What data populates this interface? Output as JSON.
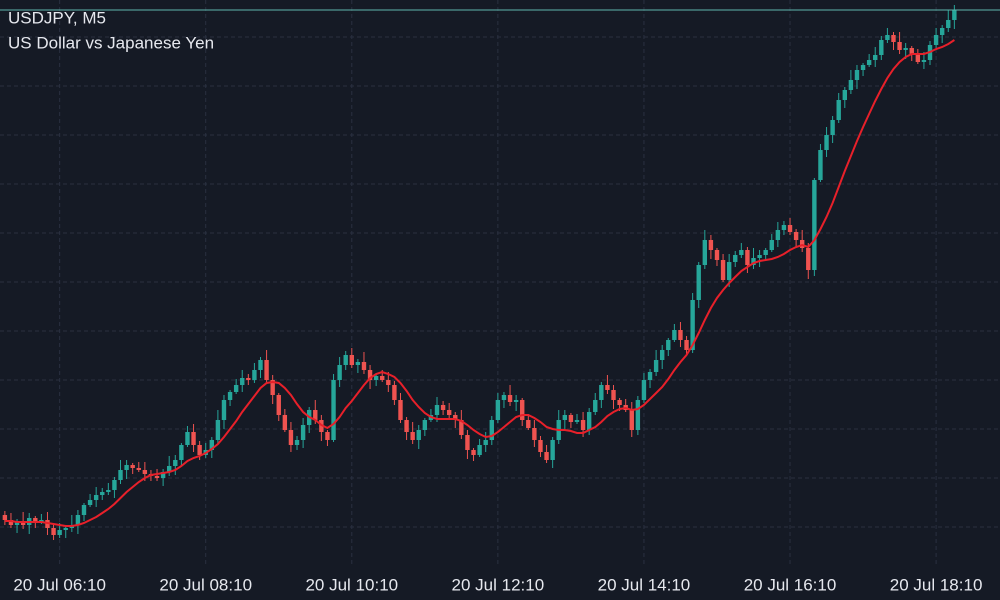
{
  "chart_data": {
    "type": "candlestick",
    "title": "USDJPY, M5",
    "subtitle": "US Dollar vs Japanese Yen",
    "up_color": "#26a69a",
    "down_color": "#ef5350",
    "ylim": [
      0,
      565
    ],
    "xlim": [
      -0.8,
      163.5
    ],
    "xticks": [
      {
        "value": 9,
        "label": "20 Jul 06:10"
      },
      {
        "value": 33,
        "label": "20 Jul 08:10"
      },
      {
        "value": 57,
        "label": "20 Jul 10:10"
      },
      {
        "value": 81,
        "label": "20 Jul 12:10"
      },
      {
        "value": 105,
        "label": "20 Jul 14:10"
      },
      {
        "value": 129,
        "label": "20 Jul 16:10"
      },
      {
        "value": 153,
        "label": "20 Jul 18:10"
      }
    ],
    "candles": [
      [
        50,
        54,
        40,
        45
      ],
      [
        45,
        52,
        37,
        40
      ],
      [
        40,
        46,
        32,
        43
      ],
      [
        43,
        53,
        36,
        40
      ],
      [
        40,
        52,
        31,
        47
      ],
      [
        47,
        49,
        37,
        43
      ],
      [
        43,
        51,
        41,
        45
      ],
      [
        45,
        53,
        30,
        37
      ],
      [
        37,
        41,
        25,
        30
      ],
      [
        30,
        42,
        27,
        35
      ],
      [
        35,
        40,
        27,
        37
      ],
      [
        37,
        50,
        33,
        40
      ],
      [
        40,
        55,
        31,
        50
      ],
      [
        50,
        62,
        44,
        60
      ],
      [
        60,
        71,
        58,
        65
      ],
      [
        65,
        78,
        58,
        70
      ],
      [
        70,
        77,
        65,
        73
      ],
      [
        73,
        82,
        70,
        75
      ],
      [
        75,
        88,
        67,
        85
      ],
      [
        85,
        105,
        81,
        95
      ],
      [
        95,
        105,
        86,
        100
      ],
      [
        100,
        102,
        91,
        97
      ],
      [
        97,
        103,
        93,
        95
      ],
      [
        95,
        103,
        84,
        91
      ],
      [
        91,
        95,
        84,
        89
      ],
      [
        89,
        96,
        84,
        87
      ],
      [
        87,
        96,
        79,
        93
      ],
      [
        93,
        109,
        89,
        99
      ],
      [
        99,
        110,
        90,
        105
      ],
      [
        105,
        122,
        99,
        120
      ],
      [
        120,
        139,
        118,
        133
      ],
      [
        133,
        141,
        113,
        120
      ],
      [
        120,
        124,
        105,
        110
      ],
      [
        110,
        122,
        107,
        115
      ],
      [
        115,
        128,
        107,
        125
      ],
      [
        125,
        155,
        121,
        145
      ],
      [
        145,
        170,
        136,
        165
      ],
      [
        165,
        175,
        159,
        173
      ],
      [
        173,
        186,
        171,
        180
      ],
      [
        180,
        195,
        173,
        187
      ],
      [
        187,
        191,
        180,
        185
      ],
      [
        185,
        202,
        182,
        195
      ],
      [
        195,
        208,
        187,
        205
      ],
      [
        205,
        215,
        181,
        185
      ],
      [
        185,
        190,
        161,
        170
      ],
      [
        170,
        172,
        144,
        150
      ],
      [
        150,
        156,
        133,
        135
      ],
      [
        135,
        143,
        113,
        120
      ],
      [
        120,
        129,
        115,
        125
      ],
      [
        125,
        147,
        117,
        140
      ],
      [
        140,
        158,
        132,
        155
      ],
      [
        155,
        165,
        141,
        145
      ],
      [
        145,
        150,
        124,
        133
      ],
      [
        133,
        135,
        119,
        125
      ],
      [
        125,
        191,
        123,
        185
      ],
      [
        185,
        208,
        178,
        200
      ],
      [
        200,
        214,
        195,
        210
      ],
      [
        210,
        217,
        197,
        200
      ],
      [
        200,
        206,
        192,
        203
      ],
      [
        203,
        213,
        191,
        195
      ],
      [
        195,
        200,
        176,
        185
      ],
      [
        185,
        191,
        179,
        189
      ],
      [
        189,
        195,
        183,
        185
      ],
      [
        185,
        193,
        173,
        180
      ],
      [
        180,
        184,
        160,
        165
      ],
      [
        165,
        172,
        142,
        145
      ],
      [
        145,
        148,
        125,
        133
      ],
      [
        133,
        143,
        121,
        125
      ],
      [
        125,
        140,
        116,
        135
      ],
      [
        135,
        147,
        129,
        145
      ],
      [
        145,
        156,
        143,
        150
      ],
      [
        150,
        168,
        143,
        160
      ],
      [
        160,
        164,
        150,
        155
      ],
      [
        155,
        162,
        147,
        150
      ],
      [
        150,
        153,
        137,
        145
      ],
      [
        145,
        155,
        126,
        130
      ],
      [
        130,
        135,
        106,
        115
      ],
      [
        115,
        117,
        104,
        110
      ],
      [
        110,
        126,
        108,
        120
      ],
      [
        120,
        133,
        113,
        125
      ],
      [
        125,
        149,
        120,
        145
      ],
      [
        145,
        172,
        142,
        165
      ],
      [
        165,
        173,
        157,
        170
      ],
      [
        170,
        180,
        159,
        163
      ],
      [
        163,
        170,
        154,
        165
      ],
      [
        165,
        167,
        139,
        145
      ],
      [
        145,
        151,
        135,
        137
      ],
      [
        137,
        145,
        118,
        125
      ],
      [
        125,
        129,
        108,
        113
      ],
      [
        113,
        120,
        102,
        105
      ],
      [
        105,
        128,
        97,
        125
      ],
      [
        125,
        155,
        121,
        145
      ],
      [
        145,
        155,
        136,
        150
      ],
      [
        150,
        152,
        137,
        143
      ],
      [
        143,
        151,
        141,
        145
      ],
      [
        145,
        153,
        128,
        135
      ],
      [
        135,
        157,
        130,
        153
      ],
      [
        153,
        172,
        150,
        165
      ],
      [
        165,
        183,
        157,
        180
      ],
      [
        180,
        190,
        171,
        175
      ],
      [
        175,
        180,
        156,
        165
      ],
      [
        165,
        167,
        154,
        160
      ],
      [
        160,
        166,
        153,
        155
      ],
      [
        155,
        163,
        128,
        135
      ],
      [
        135,
        169,
        130,
        165
      ],
      [
        165,
        192,
        162,
        185
      ],
      [
        185,
        196,
        177,
        193
      ],
      [
        193,
        215,
        189,
        205
      ],
      [
        205,
        220,
        196,
        215
      ],
      [
        215,
        227,
        209,
        225
      ],
      [
        225,
        241,
        223,
        235
      ],
      [
        235,
        243,
        218,
        225
      ],
      [
        225,
        229,
        210,
        215
      ],
      [
        215,
        272,
        212,
        265
      ],
      [
        265,
        303,
        257,
        300
      ],
      [
        300,
        335,
        296,
        325
      ],
      [
        325,
        330,
        306,
        315
      ],
      [
        315,
        317,
        299,
        305
      ],
      [
        305,
        311,
        283,
        285
      ],
      [
        285,
        311,
        278,
        303
      ],
      [
        303,
        314,
        298,
        310
      ],
      [
        310,
        322,
        307,
        315
      ],
      [
        315,
        318,
        292,
        300
      ],
      [
        300,
        317,
        296,
        307
      ],
      [
        307,
        315,
        298,
        310
      ],
      [
        310,
        317,
        304,
        315
      ],
      [
        315,
        331,
        313,
        325
      ],
      [
        325,
        343,
        318,
        335
      ],
      [
        335,
        344,
        330,
        340
      ],
      [
        340,
        347,
        330,
        333
      ],
      [
        333,
        336,
        317,
        325
      ],
      [
        325,
        335,
        313,
        317
      ],
      [
        317,
        322,
        286,
        295
      ],
      [
        295,
        387,
        289,
        385
      ],
      [
        385,
        421,
        383,
        415
      ],
      [
        415,
        438,
        408,
        430
      ],
      [
        430,
        449,
        422,
        445
      ],
      [
        445,
        472,
        442,
        465
      ],
      [
        465,
        478,
        457,
        475
      ],
      [
        475,
        495,
        471,
        485
      ],
      [
        485,
        500,
        476,
        495
      ],
      [
        495,
        502,
        489,
        500
      ],
      [
        500,
        511,
        498,
        505
      ],
      [
        505,
        518,
        498,
        510
      ],
      [
        510,
        529,
        505,
        525
      ],
      [
        525,
        537,
        522,
        530
      ],
      [
        530,
        533,
        515,
        523
      ],
      [
        523,
        533,
        511,
        515
      ],
      [
        515,
        522,
        506,
        517
      ],
      [
        517,
        519,
        504,
        510
      ],
      [
        510,
        516,
        501,
        503
      ],
      [
        503,
        513,
        496,
        505
      ],
      [
        505,
        524,
        500,
        520
      ],
      [
        520,
        537,
        517,
        530
      ],
      [
        530,
        540,
        522,
        537
      ],
      [
        537,
        555,
        533,
        545
      ],
      [
        545,
        560,
        536,
        555
      ]
    ],
    "ma": {
      "color": "#e8202a",
      "values": [
        44,
        44,
        43,
        43,
        43,
        43,
        43,
        42,
        41,
        40,
        39,
        39,
        40,
        42,
        45,
        48,
        52,
        56,
        61,
        67,
        73,
        78,
        83,
        87,
        90,
        91,
        92,
        93,
        95,
        99,
        104,
        107,
        109,
        112,
        116,
        121,
        128,
        136,
        144,
        153,
        161,
        169,
        177,
        182,
        183,
        182,
        177,
        170,
        161,
        153,
        148,
        145,
        140,
        137,
        141,
        148,
        157,
        164,
        172,
        180,
        187,
        191,
        193,
        191,
        188,
        182,
        174,
        165,
        158,
        152,
        148,
        146,
        146,
        146,
        146,
        144,
        140,
        135,
        131,
        128,
        129,
        133,
        138,
        143,
        148,
        150,
        150,
        147,
        143,
        138,
        136,
        135,
        135,
        134,
        132,
        132,
        135,
        138,
        143,
        149,
        153,
        156,
        157,
        155,
        156,
        160,
        166,
        172,
        178,
        186,
        195,
        203,
        210,
        220,
        232,
        245,
        257,
        267,
        275,
        282,
        288,
        294,
        298,
        302,
        304,
        305,
        306,
        308,
        311,
        315,
        318,
        320,
        318,
        325,
        336,
        348,
        362,
        378,
        394,
        409,
        424,
        438,
        451,
        464,
        476,
        487,
        496,
        503,
        508,
        511,
        511,
        511,
        513,
        516,
        518,
        521,
        525
      ]
    }
  }
}
